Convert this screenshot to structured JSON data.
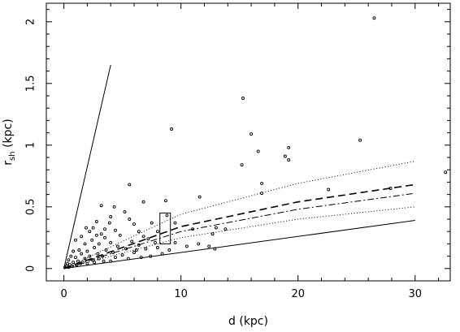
{
  "chart_data": {
    "type": "scatter",
    "title": "",
    "xlabel": "d  (kpc)",
    "ylabel": "r",
    "ylabel_subscript": "sh",
    "ylabel_unit": "  (kpc)",
    "xlim": [
      -1.5,
      33.0
    ],
    "ylim": [
      -0.1,
      2.15
    ],
    "xticks": [
      0,
      10,
      20,
      30
    ],
    "yticks": [
      0,
      0.5,
      1,
      1.5,
      2
    ],
    "xtick_labels": [
      "0",
      "10",
      "20",
      "30"
    ],
    "ytick_labels": [
      "0",
      "0.5",
      "1",
      "1.5",
      "2"
    ],
    "grid": false,
    "legend": "none",
    "colors": {
      "ink": "#000000",
      "background": "#ffffff"
    },
    "lines": [
      {
        "style": "solid",
        "points": [
          [
            0,
            0
          ],
          [
            4.0,
            1.65
          ]
        ]
      },
      {
        "style": "solid",
        "points": [
          [
            0,
            0
          ],
          [
            30,
            0.39
          ]
        ]
      },
      {
        "style": "dotted",
        "points": [
          [
            0,
            0
          ],
          [
            10,
            0.44
          ],
          [
            20,
            0.69
          ],
          [
            30,
            0.87
          ]
        ]
      },
      {
        "style": "dotted",
        "points": [
          [
            0,
            0
          ],
          [
            10,
            0.25
          ],
          [
            20,
            0.4
          ],
          [
            30,
            0.5
          ]
        ]
      },
      {
        "style": "dashed",
        "points": [
          [
            0,
            0
          ],
          [
            10,
            0.34
          ],
          [
            20,
            0.54
          ],
          [
            30,
            0.68
          ]
        ]
      },
      {
        "style": "dashdot",
        "points": [
          [
            0,
            0
          ],
          [
            10,
            0.3
          ],
          [
            20,
            0.48
          ],
          [
            30,
            0.61
          ]
        ]
      }
    ],
    "boxes": [
      {
        "x": [
          8.2,
          9.1
        ],
        "y": [
          0.2,
          0.45
        ]
      }
    ],
    "points": [
      [
        26.5,
        2.03
      ],
      [
        15.3,
        1.38
      ],
      [
        9.2,
        1.13
      ],
      [
        16.0,
        1.09
      ],
      [
        25.3,
        1.04
      ],
      [
        19.2,
        0.98
      ],
      [
        16.6,
        0.95
      ],
      [
        18.9,
        0.91
      ],
      [
        19.2,
        0.88
      ],
      [
        15.2,
        0.84
      ],
      [
        32.6,
        0.78
      ],
      [
        16.9,
        0.69
      ],
      [
        5.6,
        0.68
      ],
      [
        27.9,
        0.65
      ],
      [
        22.6,
        0.64
      ],
      [
        16.9,
        0.61
      ],
      [
        11.6,
        0.58
      ],
      [
        8.7,
        0.55
      ],
      [
        6.8,
        0.54
      ],
      [
        3.2,
        0.51
      ],
      [
        4.3,
        0.5
      ],
      [
        5.2,
        0.46
      ],
      [
        8.8,
        0.43
      ],
      [
        4.0,
        0.42
      ],
      [
        5.6,
        0.4
      ],
      [
        2.8,
        0.38
      ],
      [
        3.9,
        0.37
      ],
      [
        7.5,
        0.37
      ],
      [
        9.5,
        0.37
      ],
      [
        6.0,
        0.36
      ],
      [
        1.9,
        0.33
      ],
      [
        2.5,
        0.33
      ],
      [
        3.5,
        0.32
      ],
      [
        13.0,
        0.33
      ],
      [
        11.0,
        0.32
      ],
      [
        13.8,
        0.32
      ],
      [
        4.4,
        0.31
      ],
      [
        6.4,
        0.3
      ],
      [
        2.2,
        0.3
      ],
      [
        8.0,
        0.3
      ],
      [
        3.2,
        0.28
      ],
      [
        2.8,
        0.27
      ],
      [
        4.8,
        0.27
      ],
      [
        12.7,
        0.28
      ],
      [
        1.5,
        0.26
      ],
      [
        6.8,
        0.26
      ],
      [
        3.5,
        0.25
      ],
      [
        7.2,
        0.24
      ],
      [
        1.0,
        0.23
      ],
      [
        2.4,
        0.23
      ],
      [
        5.8,
        0.22
      ],
      [
        4.0,
        0.21
      ],
      [
        7.8,
        0.21
      ],
      [
        9.5,
        0.21
      ],
      [
        1.8,
        0.2
      ],
      [
        3.0,
        0.2
      ],
      [
        6.4,
        0.19
      ],
      [
        4.6,
        0.18
      ],
      [
        12.4,
        0.18
      ],
      [
        2.6,
        0.17
      ],
      [
        5.3,
        0.16
      ],
      [
        7.0,
        0.16
      ],
      [
        12.9,
        0.16
      ],
      [
        1.3,
        0.15
      ],
      [
        3.6,
        0.15
      ],
      [
        0.8,
        0.14
      ],
      [
        2.0,
        0.14
      ],
      [
        4.2,
        0.13
      ],
      [
        6.0,
        0.13
      ],
      [
        8.4,
        0.12
      ],
      [
        1.5,
        0.12
      ],
      [
        2.9,
        0.12
      ],
      [
        5.0,
        0.11
      ],
      [
        3.3,
        0.1
      ],
      [
        0.6,
        0.1
      ],
      [
        2.2,
        0.1
      ],
      [
        4.4,
        0.09
      ],
      [
        1.0,
        0.09
      ],
      [
        6.6,
        0.09
      ],
      [
        1.8,
        0.08
      ],
      [
        3.0,
        0.08
      ],
      [
        0.4,
        0.07
      ],
      [
        2.5,
        0.07
      ],
      [
        1.2,
        0.06
      ],
      [
        4.0,
        0.06
      ],
      [
        0.8,
        0.05
      ],
      [
        1.6,
        0.05
      ],
      [
        0.3,
        0.04
      ],
      [
        2.0,
        0.04
      ],
      [
        0.5,
        0.03
      ],
      [
        1.1,
        0.03
      ],
      [
        0.2,
        0.02
      ],
      [
        0.7,
        0.02
      ],
      [
        0.1,
        0.01
      ],
      [
        0.4,
        0.01
      ],
      [
        1.4,
        0.04
      ],
      [
        2.6,
        0.05
      ],
      [
        3.4,
        0.06
      ],
      [
        5.5,
        0.08
      ],
      [
        7.4,
        0.1
      ],
      [
        9.0,
        0.15
      ],
      [
        10.5,
        0.18
      ],
      [
        11.5,
        0.2
      ],
      [
        8.0,
        0.17
      ],
      [
        6.2,
        0.15
      ]
    ]
  }
}
